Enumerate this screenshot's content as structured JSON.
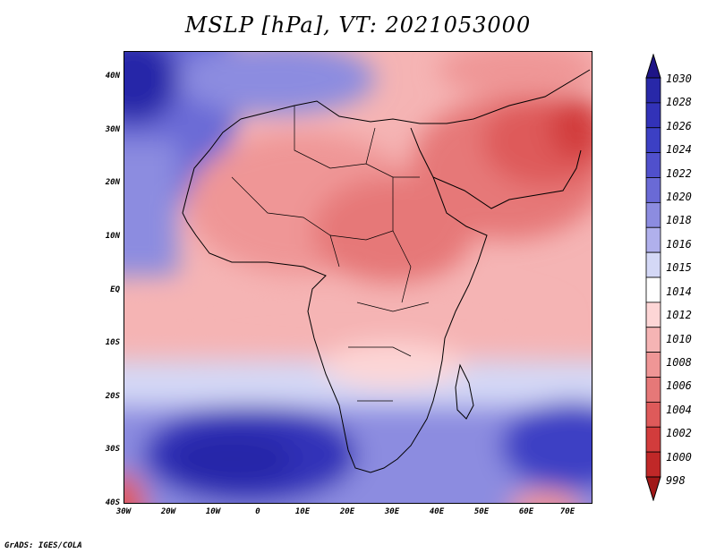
{
  "title": "MSLP [hPa], VT: 2021053000",
  "credit": "GrADS: IGES/COLA",
  "map": {
    "region": "Africa and surrounding oceans",
    "lon_range": [
      -30,
      75
    ],
    "lat_range": [
      -40,
      45
    ],
    "lat_labels": [
      "40N",
      "30N",
      "20N",
      "10N",
      "EQ",
      "10S",
      "20S",
      "30S",
      "40S"
    ],
    "lon_labels": [
      "30W",
      "20W",
      "10W",
      "0",
      "10E",
      "20E",
      "30E",
      "40E",
      "50E",
      "60E",
      "70E"
    ]
  },
  "colorbar": {
    "levels": [
      "1030",
      "1028",
      "1026",
      "1024",
      "1022",
      "1020",
      "1018",
      "1016",
      "1015",
      "1014",
      "1012",
      "1010",
      "1008",
      "1006",
      "1004",
      "1002",
      "1000",
      "998"
    ],
    "colors": [
      "#1e1487",
      "#2828a8",
      "#3232b8",
      "#3c40c4",
      "#5050cc",
      "#6a6ad6",
      "#8c8ce0",
      "#b0b0ec",
      "#d4d8f6",
      "#ffffff",
      "#fdd6d6",
      "#f5b4b4",
      "#ef9696",
      "#e67878",
      "#de5a5a",
      "#d23c3c",
      "#c02828",
      "#a01818"
    ]
  },
  "colors": {
    "high": "#2828a8",
    "low": "#d23c3c",
    "neutral": "#ffffff"
  }
}
